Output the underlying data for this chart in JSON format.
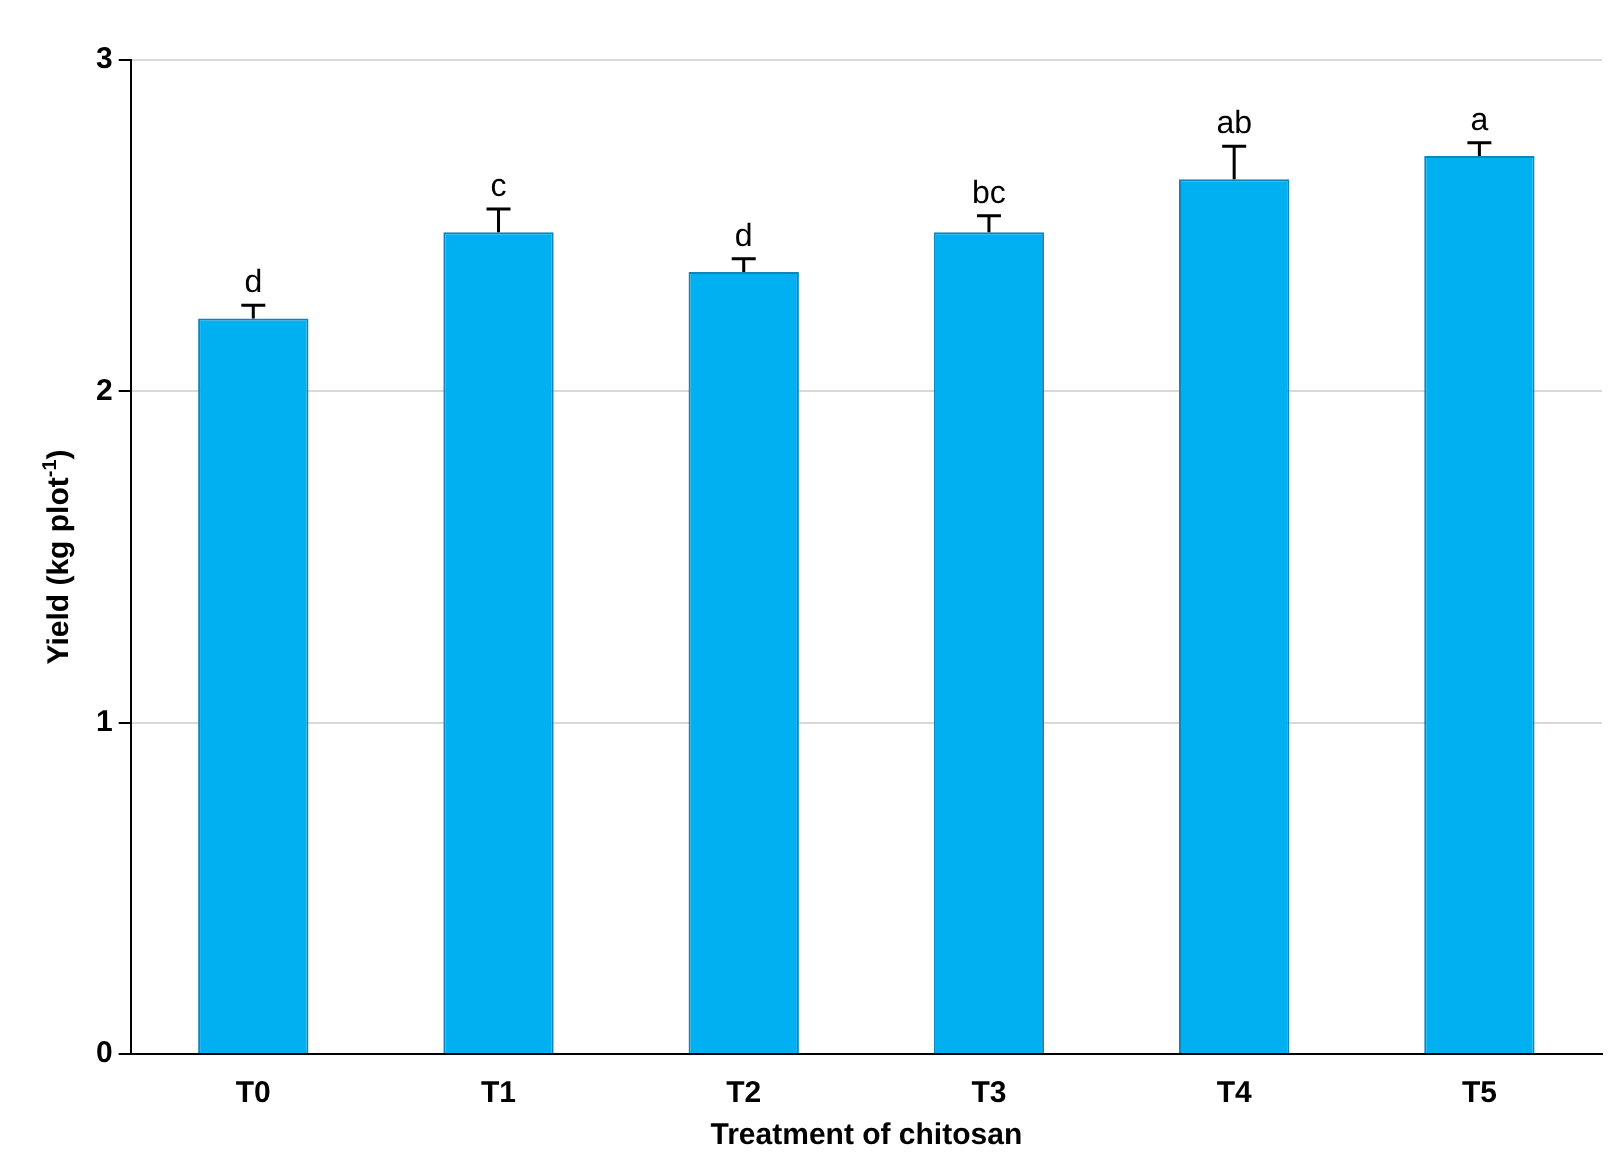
{
  "chart_data": {
    "type": "bar",
    "xlabel": "Treatment of chitosan",
    "ylabel": "Yield (kg plot$^{-1}$)",
    "categories": [
      "T0",
      "T1",
      "T2",
      "T3",
      "T4",
      "T5"
    ],
    "values": [
      2.22,
      2.48,
      2.36,
      2.48,
      2.64,
      2.71
    ],
    "errors": [
      0.04,
      0.07,
      0.04,
      0.05,
      0.1,
      0.04
    ],
    "color": "#00b0f0",
    "ylim": [
      0,
      3
    ],
    "yticks": [
      0,
      1,
      2,
      3
    ],
    "grid": "y",
    "annotations": [
      {
        "text": "d",
        "x": "T0",
        "y": 2.26
      },
      {
        "text": "c",
        "x": "T1",
        "y": 2.55
      },
      {
        "text": "d",
        "x": "T2",
        "y": 2.4
      },
      {
        "text": "bc",
        "x": "T3",
        "y": 2.53
      },
      {
        "text": "ab",
        "x": "T4",
        "y": 2.74
      },
      {
        "text": "a",
        "x": "T5",
        "y": 2.75
      }
    ]
  }
}
